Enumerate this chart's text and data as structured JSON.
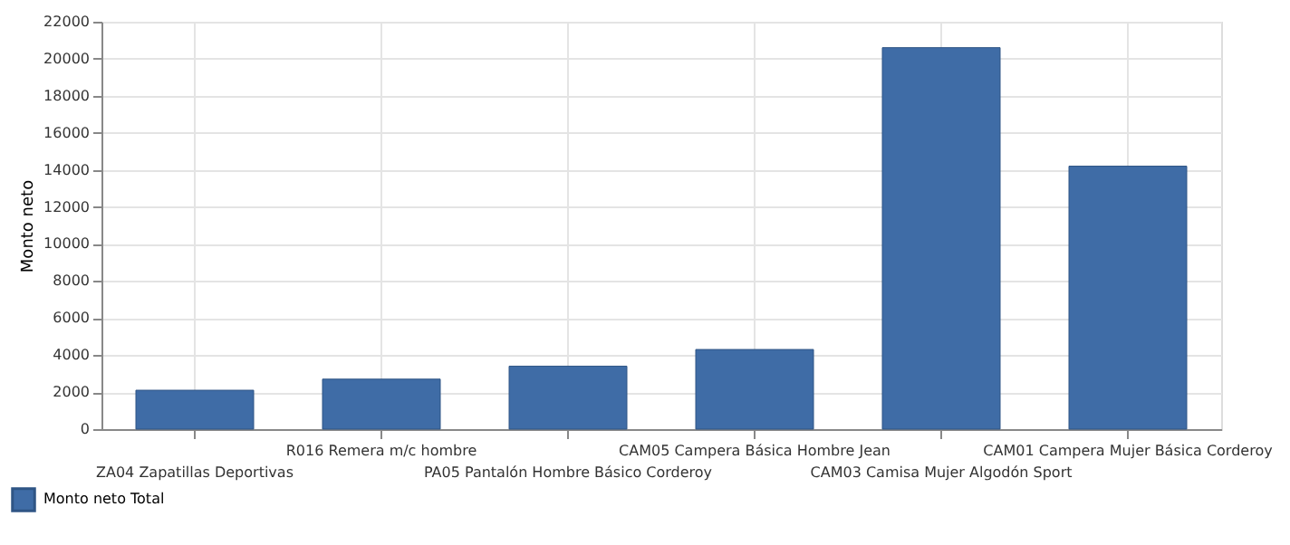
{
  "chart_data": {
    "type": "bar",
    "ylabel": "Monto neto",
    "categories": [
      "ZA04 Zapatillas Deportivas",
      "R016 Remera m/c hombre",
      "PA05 Pantalón Hombre Básico Corderoy",
      "CAM05 Campera Básica Hombre Jean",
      "CAM03 Camisa Mujer Algodón Sport",
      "CAM01 Campera Mujer Básica Corderoy"
    ],
    "series": [
      {
        "name": "Monto neto Total",
        "color": "#3f6ca6",
        "values": [
          2100,
          2700,
          3400,
          4300,
          20600,
          14200
        ]
      }
    ],
    "ylim": [
      0,
      22000
    ],
    "yticks": [
      0,
      2000,
      4000,
      6000,
      8000,
      10000,
      12000,
      14000,
      16000,
      18000,
      20000,
      22000
    ],
    "grid": true,
    "legend": "bottom left"
  }
}
